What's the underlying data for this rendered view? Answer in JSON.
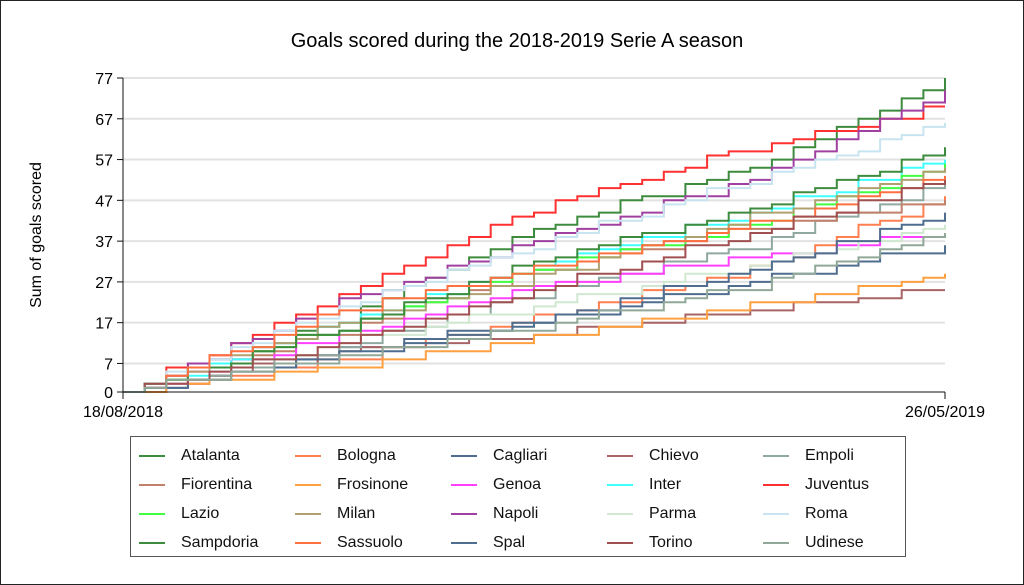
{
  "chart_data": {
    "type": "line",
    "title": "Goals scored during the 2018-2019 Serie A season",
    "xlabel": "",
    "ylabel": "Sum of goals scored",
    "x_tick_labels": [
      "18/08/2018",
      "26/05/2019"
    ],
    "y_ticks": [
      0,
      7,
      17,
      27,
      37,
      47,
      57,
      67,
      77
    ],
    "ylim": [
      0,
      77
    ],
    "matchdays": 38,
    "checkpoint_matchdays": [
      0,
      10,
      19,
      29,
      38
    ],
    "grid": true,
    "legend_position": "bottom",
    "series": [
      {
        "name": "Atalanta",
        "color": "#3d8b3d",
        "values": [
          0,
          18,
          40,
          55,
          77
        ]
      },
      {
        "name": "Bologna",
        "color": "#ff7f50",
        "values": [
          0,
          8,
          18,
          30,
          48
        ]
      },
      {
        "name": "Cagliari",
        "color": "#4f6d8f",
        "values": [
          0,
          10,
          17,
          27,
          36
        ]
      },
      {
        "name": "Chievo",
        "color": "#a86464",
        "values": [
          0,
          10,
          14,
          20,
          25
        ]
      },
      {
        "name": "Empoli",
        "color": "#8fa8a0",
        "values": [
          0,
          11,
          24,
          36,
          51
        ]
      },
      {
        "name": "Fiorentina",
        "color": "#c0806a",
        "values": [
          0,
          15,
          30,
          40,
          47
        ]
      },
      {
        "name": "Frosinone",
        "color": "#ffa040",
        "values": [
          0,
          6,
          13,
          21,
          29
        ]
      },
      {
        "name": "Genoa",
        "color": "#ff40ff",
        "values": [
          0,
          14,
          26,
          33,
          39
        ]
      },
      {
        "name": "Inter",
        "color": "#40ffff",
        "values": [
          0,
          17,
          31,
          44,
          57
        ]
      },
      {
        "name": "Juventus",
        "color": "#ff3030",
        "values": [
          0,
          24,
          45,
          60,
          70
        ]
      },
      {
        "name": "Lazio",
        "color": "#40ff40",
        "values": [
          0,
          16,
          30,
          41,
          56
        ]
      },
      {
        "name": "Milan",
        "color": "#b0a070",
        "values": [
          0,
          17,
          28,
          43,
          55
        ]
      },
      {
        "name": "Napoli",
        "color": "#a040a0",
        "values": [
          0,
          22,
          37,
          52,
          74
        ]
      },
      {
        "name": "Parma",
        "color": "#d0e8d0",
        "values": [
          0,
          12,
          21,
          31,
          41
        ]
      },
      {
        "name": "Roma",
        "color": "#c8e4f0",
        "values": [
          0,
          21,
          36,
          52,
          66
        ]
      },
      {
        "name": "Sampdoria",
        "color": "#3d8b3d",
        "values": [
          0,
          16,
          32,
          45,
          60
        ]
      },
      {
        "name": "Sassuolo",
        "color": "#ff7040",
        "values": [
          0,
          20,
          30,
          41,
          53
        ]
      },
      {
        "name": "Spal",
        "color": "#4f6d8f",
        "values": [
          0,
          9,
          17,
          30,
          44
        ]
      },
      {
        "name": "Torino",
        "color": "#a05050",
        "values": [
          0,
          12,
          25,
          39,
          52
        ]
      },
      {
        "name": "Udinese",
        "color": "#90a898",
        "values": [
          0,
          9,
          16,
          26,
          39
        ]
      }
    ]
  }
}
